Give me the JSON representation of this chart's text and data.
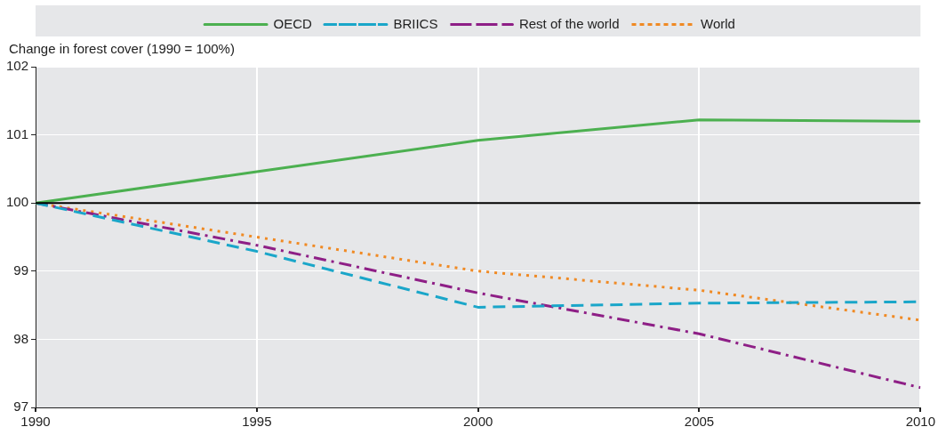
{
  "chart_data": {
    "type": "line",
    "ylabel": "Change in forest cover (1990 = 100%)",
    "x": [
      1990,
      1995,
      2000,
      2005,
      2010
    ],
    "series": [
      {
        "name": "OECD",
        "color": "#4cb050",
        "line_style": "solid",
        "values": [
          100,
          100.46,
          100.92,
          101.22,
          101.2
        ]
      },
      {
        "name": "BRIICS",
        "color": "#1aa6c9",
        "line_style": "dashed",
        "values": [
          100,
          99.29,
          98.47,
          98.53,
          98.55
        ]
      },
      {
        "name": "Rest of the world",
        "color": "#8e1f86",
        "line_style": "dashdot",
        "values": [
          100,
          99.38,
          98.68,
          98.08,
          97.29
        ]
      },
      {
        "name": "World",
        "color": "#f08a24",
        "line_style": "dotted",
        "values": [
          100,
          99.5,
          99.0,
          98.72,
          98.28
        ]
      }
    ],
    "xlim": [
      1990,
      2010
    ],
    "xticks": [
      1990,
      1995,
      2000,
      2005,
      2010
    ],
    "ylim": [
      97,
      102
    ],
    "yticks": [
      97,
      98,
      99,
      100,
      101,
      102
    ],
    "ref_lines": [
      {
        "axis": "y",
        "value": 100,
        "color": "#000000"
      }
    ],
    "grid": true,
    "legend": "top",
    "marker": "none"
  }
}
